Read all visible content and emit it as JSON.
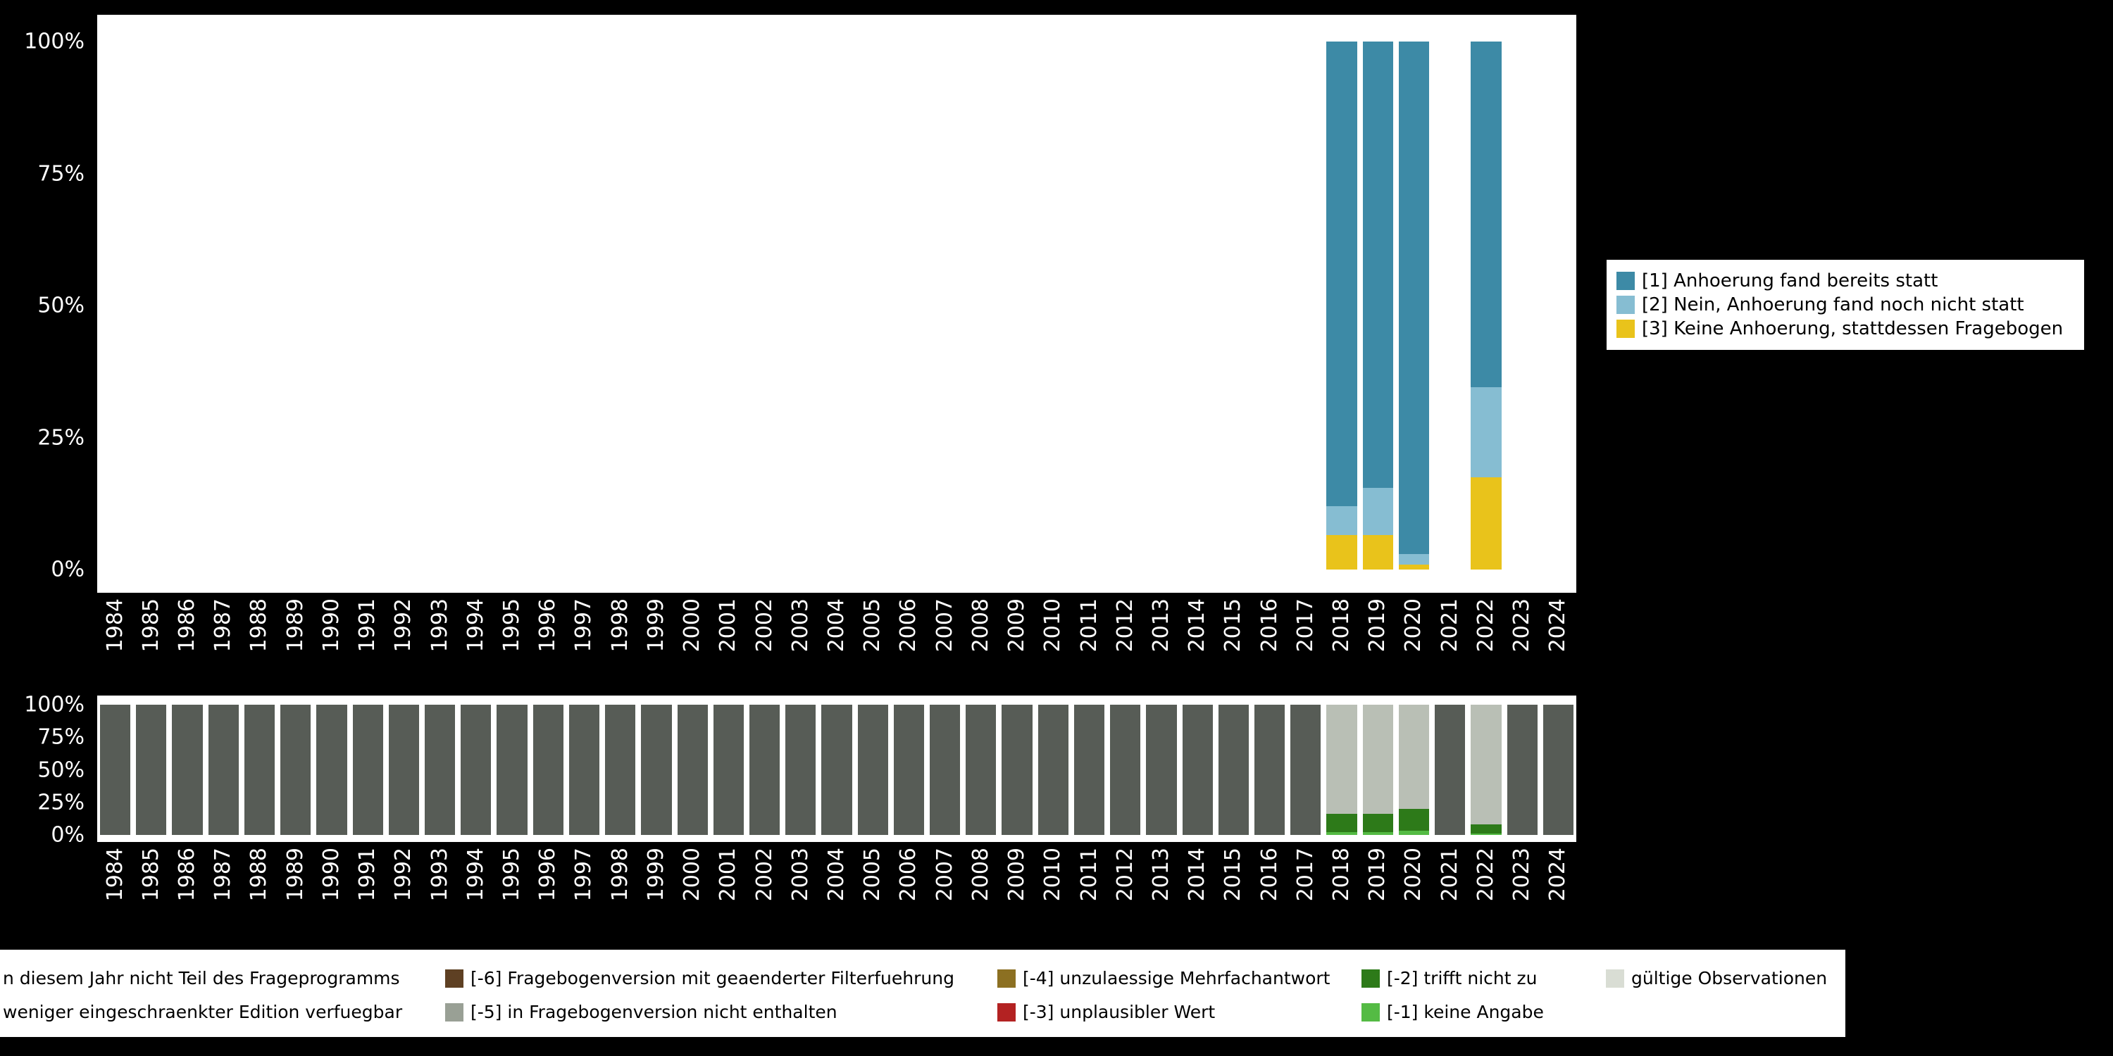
{
  "background": "#000000",
  "chart_data": [
    {
      "type": "bar",
      "stacked": true,
      "unit": "percent",
      "title": "",
      "xlabel": "",
      "ylabel": "",
      "ylim": [
        0,
        100
      ],
      "grid": false,
      "legend_position": "right",
      "categories": [
        "1984",
        "1985",
        "1986",
        "1987",
        "1988",
        "1989",
        "1990",
        "1991",
        "1992",
        "1993",
        "1994",
        "1995",
        "1996",
        "1997",
        "1998",
        "1999",
        "2000",
        "2001",
        "2002",
        "2003",
        "2004",
        "2005",
        "2006",
        "2007",
        "2008",
        "2009",
        "2010",
        "2011",
        "2012",
        "2013",
        "2014",
        "2015",
        "2016",
        "2017",
        "2018",
        "2019",
        "2020",
        "2021",
        "2022",
        "2023",
        "2024"
      ],
      "yticks": [
        {
          "label": "100%",
          "value": 100
        },
        {
          "label": "75%",
          "value": 75
        },
        {
          "label": "50%",
          "value": 50
        },
        {
          "label": "25%",
          "value": 25
        },
        {
          "label": "0%",
          "value": 0
        }
      ],
      "series_order_bottom_to_top": [
        "cat3",
        "cat2",
        "cat1"
      ],
      "series_colors": {
        "cat1": "#3d8aa6",
        "cat2": "#86bdd2",
        "cat3": "#e9c31b"
      },
      "legend": [
        {
          "key": "cat1",
          "label": "[1] Anhoerung fand bereits statt"
        },
        {
          "key": "cat2",
          "label": "[2] Nein, Anhoerung fand noch nicht statt"
        },
        {
          "key": "cat3",
          "label": "[3] Keine Anhoerung, stattdessen Fragebogen"
        }
      ],
      "bars": {
        "2018": {
          "cat3": 6.5,
          "cat2": 5.5,
          "cat1": 88
        },
        "2019": {
          "cat3": 6.5,
          "cat2": 9,
          "cat1": 84.5
        },
        "2020": {
          "cat3": 1,
          "cat2": 2,
          "cat1": 97
        },
        "2022": {
          "cat3": 17.5,
          "cat2": 17,
          "cat1": 65.5
        }
      }
    },
    {
      "type": "bar",
      "stacked": true,
      "unit": "percent",
      "title": "",
      "xlabel": "",
      "ylabel": "",
      "ylim": [
        0,
        100
      ],
      "grid": false,
      "legend_position": "bottom",
      "categories": [
        "1984",
        "1985",
        "1986",
        "1987",
        "1988",
        "1989",
        "1990",
        "1991",
        "1992",
        "1993",
        "1994",
        "1995",
        "1996",
        "1997",
        "1998",
        "1999",
        "2000",
        "2001",
        "2002",
        "2003",
        "2004",
        "2005",
        "2006",
        "2007",
        "2008",
        "2009",
        "2010",
        "2011",
        "2012",
        "2013",
        "2014",
        "2015",
        "2016",
        "2017",
        "2018",
        "2019",
        "2020",
        "2021",
        "2022",
        "2023",
        "2024"
      ],
      "yticks": [
        {
          "label": "100%",
          "value": 100
        },
        {
          "label": "75%",
          "value": 75
        },
        {
          "label": "50%",
          "value": 50
        },
        {
          "label": "25%",
          "value": 25
        },
        {
          "label": "0%",
          "value": 0
        }
      ],
      "series_order_bottom_to_top": [
        "no_answer",
        "not_applicable",
        "valid",
        "not_in_program"
      ],
      "series_colors": {
        "no_answer": "#54bb44",
        "not_applicable": "#2d7a19",
        "valid": "#b9bfb5",
        "not_in_program": "#575c56"
      },
      "default_bar": {
        "not_in_program": 100
      },
      "bars": {
        "2018": {
          "no_answer": 2,
          "not_applicable": 14.5,
          "valid": 83.5
        },
        "2019": {
          "no_answer": 2,
          "not_applicable": 14,
          "valid": 84
        },
        "2020": {
          "no_answer": 3,
          "not_applicable": 17,
          "valid": 80
        },
        "2022": {
          "no_answer": 1,
          "not_applicable": 7,
          "valid": 92
        }
      }
    }
  ],
  "legend_missings": {
    "rows": [
      [
        {
          "key": "not_in_program",
          "label": "n diesem Jahr nicht Teil des Frageprogramms",
          "color": "#575c56",
          "swatch_visible": false
        },
        {
          "key": "changed_filtering",
          "label": "[-6] Fragebogenversion mit geaenderter Filterfuehrung",
          "color": "#5e4023",
          "swatch_visible": true
        },
        {
          "key": "invalid_multiple_answer",
          "label": "[-4] unzulaessige Mehrfachantwort",
          "color": "#8c7022",
          "swatch_visible": true
        },
        {
          "key": "not_applicable",
          "label": "[-2] trifft nicht zu",
          "color": "#2d7a19",
          "swatch_visible": true
        },
        {
          "key": "valid",
          "label": "gültige Observationen",
          "color": "#d9ddd4",
          "swatch_visible": true
        }
      ],
      [
        {
          "key": "restricted_edition",
          "label": "weniger eingeschraenkter Edition verfuegbar",
          "color": "#99a095",
          "swatch_visible": false
        },
        {
          "key": "not_in_version",
          "label": "[-5] in Fragebogenversion nicht enthalten",
          "color": "#99a095",
          "swatch_visible": true
        },
        {
          "key": "implausible_value",
          "label": "[-3] unplausibler Wert",
          "color": "#b32222",
          "swatch_visible": true
        },
        {
          "key": "no_answer",
          "label": "[-1] keine Angabe",
          "color": "#54bb44",
          "swatch_visible": true
        }
      ]
    ]
  }
}
